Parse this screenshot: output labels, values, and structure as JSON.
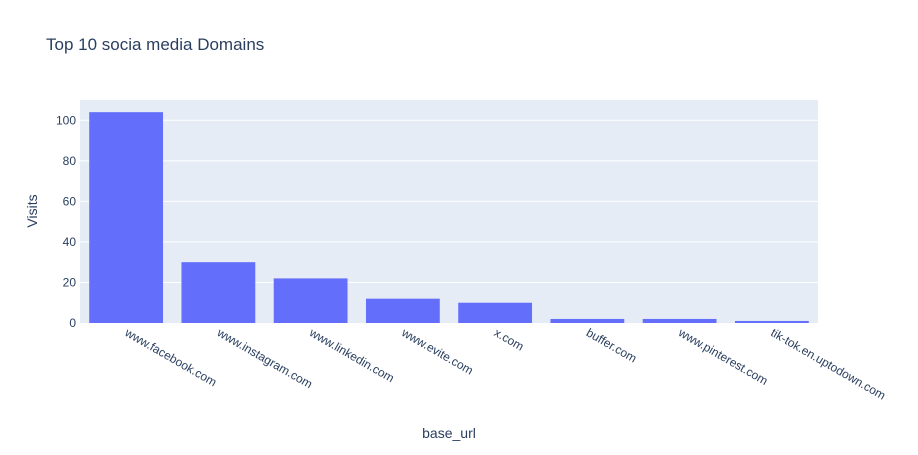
{
  "chart_data": {
    "type": "bar",
    "title": "Top 10 socia media Domains",
    "xlabel": "base_url",
    "ylabel": "Visits",
    "categories": [
      "www.facebook.com",
      "www.instagram.com",
      "www.linkedin.com",
      "www.evite.com",
      "x.com",
      "buffer.com",
      "www.pinterest.com",
      "tik-tok.en.uptodown.com"
    ],
    "values": [
      104,
      30,
      22,
      12,
      10,
      2,
      2,
      1
    ],
    "ylim": [
      0,
      110
    ],
    "yticks": [
      0,
      20,
      40,
      60,
      80,
      100
    ],
    "grid": true,
    "legend": "none",
    "colors": {
      "bar": "#636efa",
      "plot_background": "#e5ecf6",
      "gridline": "#ffffff",
      "text": "#2a3f5f"
    }
  }
}
